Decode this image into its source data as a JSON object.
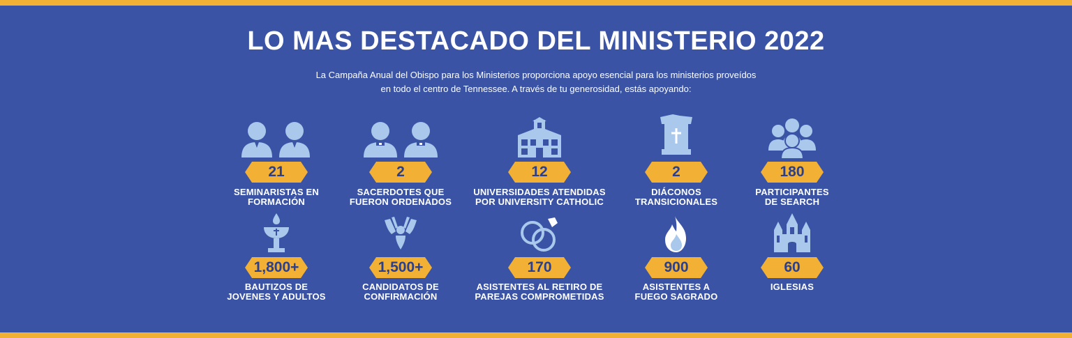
{
  "title": "LO MAS DESTACADO DEL MINISTERIO 2022",
  "intro": {
    "line1": "La Campaña Anual del Obispo para los Ministerios proporciona apoyo esencial para los ministerios proveídos",
    "line2": "en todo el centro de Tennessee. A través de tu generosidad, estás apoyando:"
  },
  "colors": {
    "background": "#3a53a4",
    "accent": "#f2b134",
    "icon": "#a9c8ec",
    "number": "#2b3f8a"
  },
  "row1": [
    {
      "icon": "seminarians-icon",
      "value": "21",
      "label1": "SEMINARISTAS EN",
      "label2": "FORMACIÓN"
    },
    {
      "icon": "priests-icon",
      "value": "2",
      "label1": "SACERDOTES QUE",
      "label2": "FUERON ORDENADOS"
    },
    {
      "icon": "university-building-icon",
      "value": "12",
      "label1": "UNIVERSIDADES ATENDIDAS",
      "label2": "POR UNIVERSITY CATHOLIC"
    },
    {
      "icon": "pulpit-icon",
      "value": "2",
      "label1": "DIÁCONOS",
      "label2": "TRANSICIONALES"
    },
    {
      "icon": "group-icon",
      "value": "180",
      "label1": "PARTICIPANTES",
      "label2": "DE SEARCH"
    }
  ],
  "row2": [
    {
      "icon": "baptismal-font-icon",
      "value": "1,800+",
      "label1": "BAUTIZOS DE",
      "label2": "JOVENES Y ADULTOS"
    },
    {
      "icon": "dove-icon",
      "value": "1,500+",
      "label1": "CANDIDATOS DE",
      "label2": "CONFIRMACIÓN"
    },
    {
      "icon": "rings-icon",
      "value": "170",
      "label1": "ASISTENTES AL RETIRO DE",
      "label2": "PAREJAS COMPROMETIDAS"
    },
    {
      "icon": "flame-icon",
      "value": "900",
      "label1": "ASISTENTES A",
      "label2": "FUEGO SAGRADO"
    },
    {
      "icon": "church-icon",
      "value": "60",
      "label1": "IGLESIAS",
      "label2": ""
    }
  ]
}
